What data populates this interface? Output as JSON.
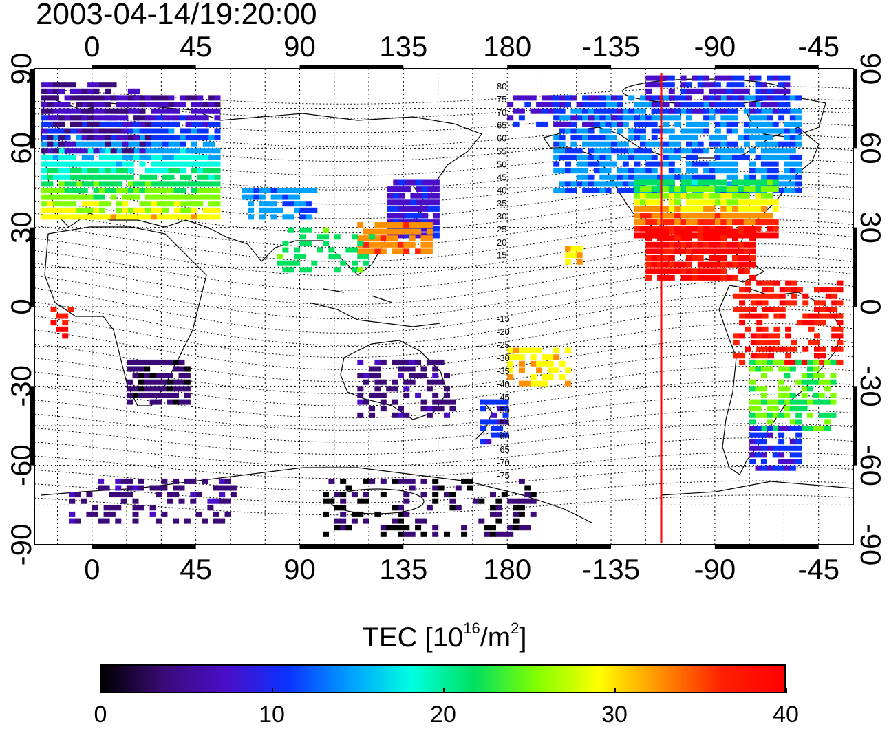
{
  "title": "2003-04-14/19:20:00",
  "map": {
    "top_axis_labels": [
      "0",
      "45",
      "90",
      "135",
      "180",
      "-135",
      "-90",
      "-45"
    ],
    "bottom_axis_labels": [
      "0",
      "45",
      "90",
      "135",
      "180",
      "-135",
      "-90",
      "-45"
    ],
    "left_axis_labels": [
      "90",
      "60",
      "30",
      "0",
      "-30",
      "-60",
      "-90"
    ],
    "right_axis_labels": [
      "90",
      "60",
      "30",
      "0",
      "-30",
      "-60",
      "-90"
    ],
    "lon_range": [
      -25,
      330
    ],
    "lat_range": [
      -90,
      90
    ],
    "contour_labels_north": [
      "80",
      "75",
      "70",
      "65",
      "60",
      "55",
      "50",
      "45",
      "40",
      "35",
      "30",
      "25",
      "20",
      "15"
    ],
    "contour_labels_south": [
      "-15",
      "-20",
      "-25",
      "-30",
      "-35",
      "-40",
      "-45",
      "-50",
      "-55",
      "-60",
      "-65",
      "-70",
      "-75"
    ],
    "marker_line_longitude": -115,
    "marker_line_color": "#ff0000"
  },
  "colorbar": {
    "label_main": "TEC  [10",
    "label_sup1": "16",
    "label_mid": "/m",
    "label_sup2": "2",
    "label_end": "]",
    "ticks": [
      "0",
      "10",
      "20",
      "30",
      "40"
    ],
    "range": [
      0,
      40
    ],
    "colors": [
      "#000000",
      "#3b0a78",
      "#4b0ec8",
      "#0a32ff",
      "#00a0ff",
      "#00ffe0",
      "#00e060",
      "#80ff00",
      "#ffff00",
      "#ff9000",
      "#ff2000",
      "#ff0000"
    ]
  }
}
